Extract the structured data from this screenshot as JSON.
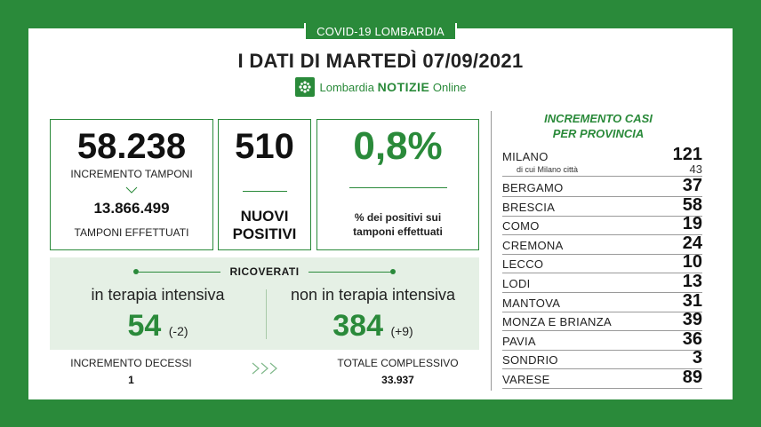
{
  "badge": "COVID-19 LOMBARDIA",
  "title": "I DATI DI MARTEDÌ 07/09/2021",
  "logo": {
    "prefix": "Lombardia",
    "brand": "NOTIZIE",
    "suffix": "Online",
    "icon": "lombardy-rose-icon"
  },
  "tamponi": {
    "increment": "58.238",
    "increment_label": "INCREMENTO TAMPONI",
    "total": "13.866.499",
    "total_label": "TAMPONI EFFETTUATI"
  },
  "nuovi_positivi": {
    "value": "510",
    "label_line1": "NUOVI",
    "label_line2": "POSITIVI"
  },
  "percent_positivi": {
    "value": "0,8%",
    "label_line1": "% dei positivi sui",
    "label_line2": "tamponi effettuati"
  },
  "ricoverati": {
    "title": "RICOVERATI",
    "ti_label": "in terapia intensiva",
    "ti_value": "54",
    "ti_delta": "(-2)",
    "nti_label": "non in terapia intensiva",
    "nti_value": "384",
    "nti_delta": "(+9)"
  },
  "decessi": {
    "label": "INCREMENTO DECESSI",
    "value": "1",
    "total_label": "TOTALE COMPLESSIVO",
    "total_value": "33.937"
  },
  "province_panel": {
    "title_line1": "INCREMENTO CASI",
    "title_line2": "PER PROVINCIA",
    "milano": {
      "name": "MILANO",
      "value": "121",
      "sub_label": "di cui Milano città",
      "sub_value": "43"
    },
    "rows": [
      {
        "name": "BERGAMO",
        "value": "37"
      },
      {
        "name": "BRESCIA",
        "value": "58"
      },
      {
        "name": "COMO",
        "value": "19"
      },
      {
        "name": "CREMONA",
        "value": "24"
      },
      {
        "name": "LECCO",
        "value": "10"
      },
      {
        "name": "LODI",
        "value": "13"
      },
      {
        "name": "MANTOVA",
        "value": "31"
      },
      {
        "name": "MONZA E BRIANZA",
        "value": "39"
      },
      {
        "name": "PAVIA",
        "value": "36"
      },
      {
        "name": "SONDRIO",
        "value": "3"
      },
      {
        "name": "VARESE",
        "value": "89"
      }
    ]
  },
  "colors": {
    "brand_green": "#2a8a3a",
    "light_green": "#e5f0e5"
  }
}
